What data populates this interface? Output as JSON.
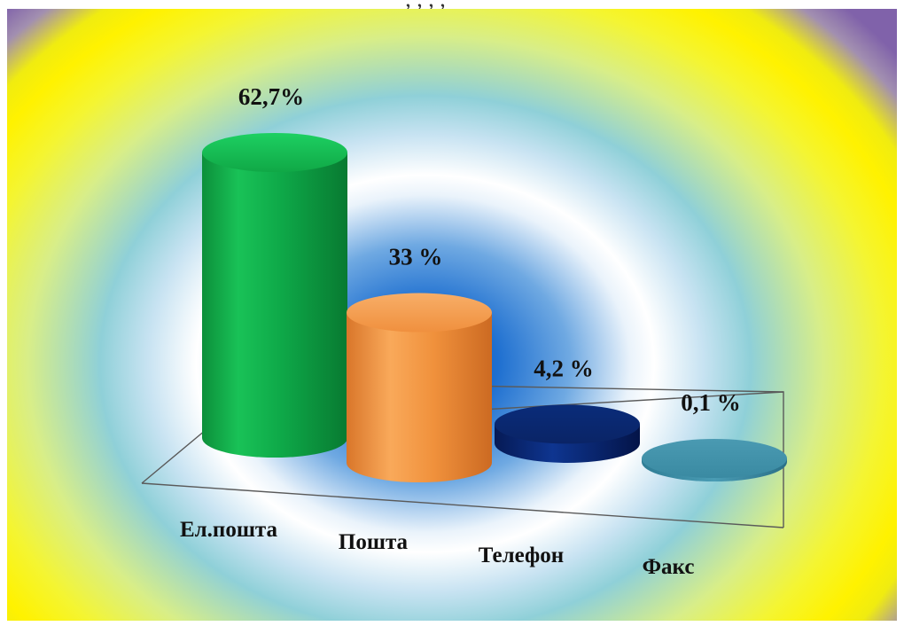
{
  "top_text": ", , , , ",
  "chart_data": {
    "type": "bar",
    "style": "3d-cylinder",
    "categories": [
      "Ел.пошта",
      "Пошта",
      "Телефон",
      "Факс"
    ],
    "values": [
      62.7,
      33,
      4.2,
      0.1
    ],
    "value_labels": [
      "62,7%",
      "33 %",
      "4,2 %",
      "0,1 %"
    ],
    "colors": [
      "#15b84e",
      "#f59a45",
      "#0a2a78",
      "#3c8ea7"
    ],
    "title": "",
    "xlabel": "",
    "ylabel": "",
    "ylim": [
      0,
      62.7
    ],
    "grid": false,
    "legend": "none"
  }
}
